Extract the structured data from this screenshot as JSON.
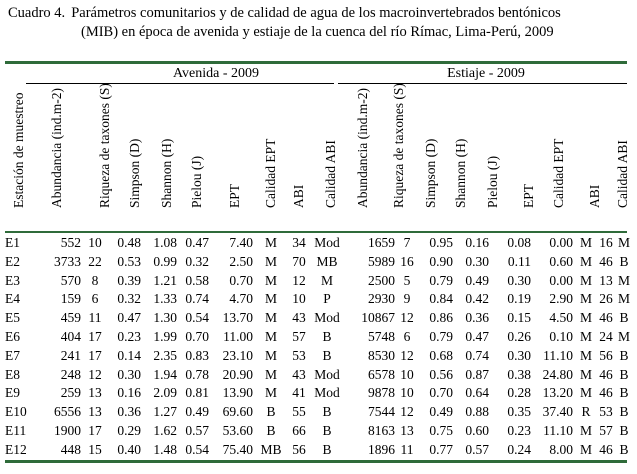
{
  "caption": {
    "number": "Cuadro 4.",
    "line1": "Parámetros comunitarios y de calidad de agua de los macroinvertebrados bentónicos",
    "line2": "(MIB) en época de avenida y estiaje de la cuenca del río Rímac, Lima-Perú, 2009"
  },
  "groups": {
    "avenida": "Avenida - 2009",
    "estiaje": "Estiaje - 2009"
  },
  "headers": [
    "Estación de muestreo",
    "Abundancia (ind.m-2)",
    "Riqueza de taxones (S)",
    "Simpson (D)",
    "Shannon (H)",
    "Pielou (J)",
    "EPT",
    "Calidad EPT",
    "ABI",
    "Calidad ABI",
    "Abundancia (ind.m-2)",
    "Riqueza de taxones (S)",
    "Simpson (D)",
    "Shannon (H)",
    "Pielou (J)",
    "EPT",
    "Calidad EPT",
    "ABI",
    "Calidad ABI"
  ],
  "rows": [
    [
      "E1",
      "552",
      "10",
      "0.48",
      "1.08",
      "0.47",
      "7.40",
      "M",
      "34",
      "Mod",
      "1659",
      "7",
      "0.95",
      "0.16",
      "0.08",
      "0.00",
      "M",
      "16",
      "M"
    ],
    [
      "E2",
      "3733",
      "22",
      "0.53",
      "0.99",
      "0.32",
      "2.50",
      "M",
      "70",
      "MB",
      "5989",
      "16",
      "0.90",
      "0.30",
      "0.11",
      "0.60",
      "M",
      "46",
      "B"
    ],
    [
      "E3",
      "570",
      "8",
      "0.39",
      "1.21",
      "0.58",
      "0.70",
      "M",
      "12",
      "M",
      "2500",
      "5",
      "0.79",
      "0.49",
      "0.30",
      "0.00",
      "M",
      "13",
      "M"
    ],
    [
      "E4",
      "159",
      "6",
      "0.32",
      "1.33",
      "0.74",
      "4.70",
      "M",
      "10",
      "P",
      "2930",
      "9",
      "0.84",
      "0.42",
      "0.19",
      "2.90",
      "M",
      "26",
      "M"
    ],
    [
      "E5",
      "459",
      "11",
      "0.47",
      "1.30",
      "0.54",
      "13.70",
      "M",
      "43",
      "Mod",
      "10867",
      "12",
      "0.86",
      "0.36",
      "0.15",
      "4.50",
      "M",
      "46",
      "B"
    ],
    [
      "E6",
      "404",
      "17",
      "0.23",
      "1.99",
      "0.70",
      "11.00",
      "M",
      "57",
      "B",
      "5748",
      "6",
      "0.79",
      "0.47",
      "0.26",
      "0.10",
      "M",
      "24",
      "M"
    ],
    [
      "E7",
      "241",
      "17",
      "0.14",
      "2.35",
      "0.83",
      "23.10",
      "M",
      "53",
      "B",
      "8530",
      "12",
      "0.68",
      "0.74",
      "0.30",
      "11.10",
      "M",
      "56",
      "B"
    ],
    [
      "E8",
      "248",
      "12",
      "0.30",
      "1.94",
      "0.78",
      "20.90",
      "M",
      "43",
      "Mod",
      "6578",
      "10",
      "0.56",
      "0.87",
      "0.38",
      "24.80",
      "M",
      "46",
      "B"
    ],
    [
      "E9",
      "259",
      "13",
      "0.16",
      "2.09",
      "0.81",
      "13.90",
      "M",
      "41",
      "Mod",
      "9878",
      "10",
      "0.70",
      "0.64",
      "0.28",
      "13.20",
      "M",
      "46",
      "B"
    ],
    [
      "E10",
      "6556",
      "13",
      "0.36",
      "1.27",
      "0.49",
      "69.60",
      "B",
      "55",
      "B",
      "7544",
      "12",
      "0.49",
      "0.88",
      "0.35",
      "37.40",
      "R",
      "53",
      "B"
    ],
    [
      "E11",
      "1900",
      "17",
      "0.29",
      "1.62",
      "0.57",
      "53.60",
      "B",
      "66",
      "B",
      "8163",
      "13",
      "0.75",
      "0.60",
      "0.23",
      "11.10",
      "M",
      "57",
      "B"
    ],
    [
      "E12",
      "448",
      "15",
      "0.40",
      "1.48",
      "0.54",
      "75.40",
      "MB",
      "56",
      "B",
      "1896",
      "11",
      "0.77",
      "0.57",
      "0.24",
      "8.00",
      "M",
      "46",
      "B"
    ]
  ]
}
